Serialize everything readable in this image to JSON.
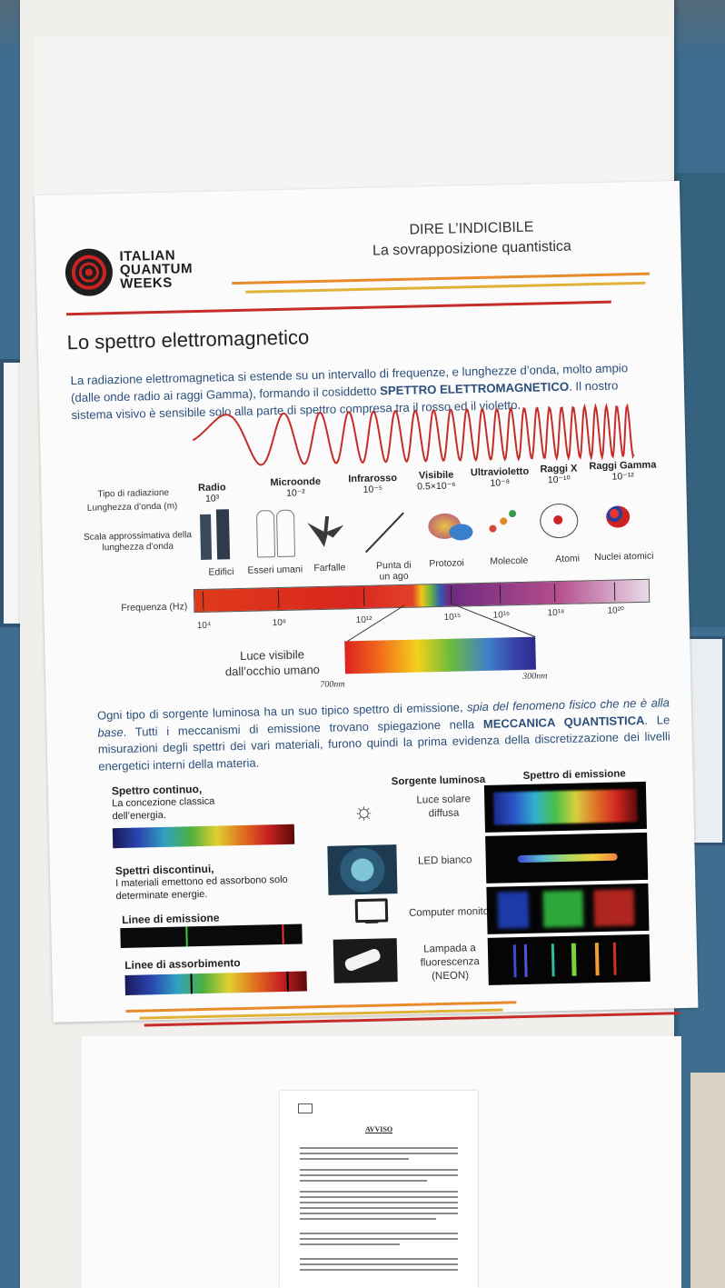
{
  "logo": {
    "line1": "ITALIAN",
    "line2": "QUANTUM",
    "line3": "WEEKS"
  },
  "header": {
    "line1": "DIRE L’INDICIBILE",
    "line2": "La sovrapposizione quantistica"
  },
  "section_title": "Lo spettro elettromagnetico",
  "intro": {
    "part1": "La radiazione elettromagnetica si estende su un intervallo di frequenze, e lunghezze d’onda, molto ampio (dalle onde radio ai raggi Gamma), formando il cosiddetto ",
    "bold": "SPETTRO ELETTROMAGNETICO",
    "part2": ". Il nostro sistema visivo è sensibile solo alla parte di spettro compresa tra il rosso ed il violetto."
  },
  "diagram": {
    "row_labels": {
      "type": "Tipo di radiazione",
      "wavelength": "Lunghezza d’onda (m)",
      "scale": "Scala approssimativa della lunghezza d’onda",
      "frequency": "Frequenza (Hz)"
    },
    "categories": [
      {
        "name": "Radio",
        "wl": "10³",
        "obj": "Edifici"
      },
      {
        "name": "Microonde",
        "wl": "10⁻²",
        "obj": "Esseri umani"
      },
      {
        "name": "Infrarosso",
        "wl": "10⁻⁵",
        "obj": "Farfalle"
      },
      {
        "name": "Visibile",
        "wl": "0.5×10⁻⁶",
        "obj": "Punta di un ago"
      },
      {
        "name": "Ultravioletto",
        "wl": "10⁻⁸",
        "obj": "Protozoi"
      },
      {
        "name": "Raggi X",
        "wl": "10⁻¹⁰",
        "obj": "Molecole"
      },
      {
        "name": "Raggi Gamma",
        "wl": "10⁻¹²",
        "obj": "Atomi"
      }
    ],
    "extra_obj": "Nuclei atomici",
    "freq_ticks": [
      "10⁴",
      "10⁸",
      "10¹²",
      "10¹⁵",
      "10¹⁶",
      "10¹⁸",
      "10²⁰"
    ],
    "visible_label": "Luce visibile dall’occhio umano",
    "vis_left": "700nm",
    "vis_right": "300nm"
  },
  "paragraph": {
    "p1": "Ogni tipo di sorgente luminosa ha un suo tipico spettro di emissione, ",
    "italic": "spia del fenomeno fisico che ne è alla base",
    "p2": ". Tutti i meccanismi di emissione trovano spiegazione nella ",
    "bold1": "MECCANICA QUANTISTICA",
    "p3": ". Le misurazioni degli spettri dei vari materiali, furono quindi la prima evidenza della discretizzazione dei livelli energetici interni della materia."
  },
  "table": {
    "col_source": "Sorgente luminosa",
    "col_spectrum": "Spettro di emissione",
    "continuous_title": "Spettro continuo,",
    "continuous_desc": "La concezione classica dell’energia.",
    "discrete_title": "Spettri discontinui,",
    "discrete_desc": "I materiali emettono ed assorbono solo determinate energie.",
    "emission_lines": "Linee di emissione",
    "absorption_lines": "Linee di assorbimento",
    "sources": [
      "Luce solare diffusa",
      "LED bianco",
      "Computer monitor",
      "Lampada a fluorescenza (NEON)"
    ]
  },
  "notice": {
    "title": "AVVISO"
  },
  "colors": {
    "red": "#c62d2a",
    "orange": "#e98a2b",
    "gold": "#e0b23a",
    "blue_text": "#2b4f7a"
  }
}
